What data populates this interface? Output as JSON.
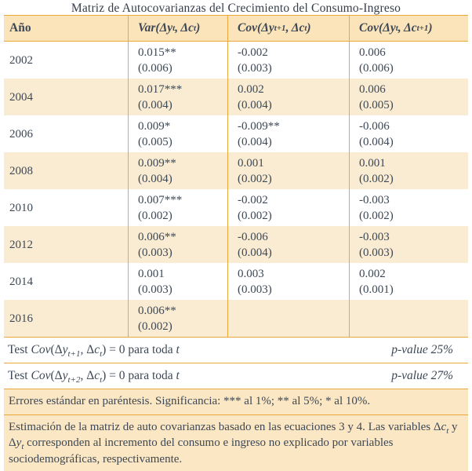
{
  "title": "Matriz de Autocovarianzas del Crecimiento del Consumo-Ingreso",
  "colors": {
    "header_bg": "#fce4ba",
    "stripe_bg": "#faecd2",
    "note_bg": "#fbe7c3",
    "border_gold": "#e9a73c",
    "text": "#3d4856"
  },
  "table": {
    "header": {
      "year_label": "Año",
      "col2_html": "Var(Δy<sub>t</sub>, Δc<sub>t</sub>)",
      "col3_html": "Cov(Δy<sub>t+1</sub>, Δc<sub>t</sub>)",
      "col4_html": "Cov(Δy<sub>t</sub>, Δc<sub>t+1</sub>)"
    },
    "rows": [
      {
        "year": "2002",
        "cells": [
          {
            "est": "0.015**",
            "se": "(0.006)"
          },
          {
            "est": "-0.002",
            "se": "(0.003)"
          },
          {
            "est": "0.006",
            "se": "(0.006)"
          }
        ]
      },
      {
        "year": "2004",
        "cells": [
          {
            "est": "0.017***",
            "se": "(0.004)"
          },
          {
            "est": "0.002",
            "se": "(0.004)"
          },
          {
            "est": "0.006",
            "se": "(0.005)"
          }
        ]
      },
      {
        "year": "2006",
        "cells": [
          {
            "est": "0.009*",
            "se": "(0.005)"
          },
          {
            "est": "-0.009**",
            "se": "(0.004)"
          },
          {
            "est": "-0.006",
            "se": "(0.004)"
          }
        ]
      },
      {
        "year": "2008",
        "cells": [
          {
            "est": "0.009**",
            "se": "(0.004)"
          },
          {
            "est": "0.001",
            "se": "(0.002)"
          },
          {
            "est": "0.001",
            "se": "(0.002)"
          }
        ]
      },
      {
        "year": "2010",
        "cells": [
          {
            "est": "0.007***",
            "se": "(0.002)"
          },
          {
            "est": "-0.002",
            "se": "(0.002)"
          },
          {
            "est": "-0.003",
            "se": "(0.002)"
          }
        ]
      },
      {
        "year": "2012",
        "cells": [
          {
            "est": "0.006**",
            "se": "(0.003)"
          },
          {
            "est": "-0.006",
            "se": "(0.004)"
          },
          {
            "est": "-0.003",
            "se": "(0.003)"
          }
        ]
      },
      {
        "year": "2014",
        "cells": [
          {
            "est": "0.001",
            "se": "(0.003)"
          },
          {
            "est": "0.003",
            "se": "(0.003)"
          },
          {
            "est": "0.002",
            "se": "(0.001)"
          }
        ]
      },
      {
        "year": "2016",
        "cells": [
          {
            "est": "0.006**",
            "se": "(0.002)"
          },
          {
            "est": "",
            "se": ""
          },
          {
            "est": "",
            "se": ""
          }
        ]
      }
    ]
  },
  "tests": [
    {
      "label_html": "Test <i>Cov</i>(Δ<i>y<sub>t+1</sub></i>, Δ<i>c<sub>t</sub></i>) = 0 para toda <i>t</i>",
      "pvalue_html": "<i>p-value</i> 25%"
    },
    {
      "label_html": "Test <i>Cov</i>(Δ<i>y<sub>t+2</sub></i>, Δ<i>c<sub>t</sub></i>) = 0 para toda <i>t</i>",
      "pvalue_html": "<i>p-value</i> 27%"
    }
  ],
  "notes": [
    {
      "html": "Errores estándar en paréntesis. Significancia: *** al 1%; ** al 5%; * al 10%."
    },
    {
      "html": "Estimación de la matriz de auto covarianzas basado en las ecuaciones 3 y 4. Las variables Δ<i>c<sub>t</sub></i> y Δ<i>y<sub>t</sub></i> corresponden al incremento del consumo e ingreso no explicado por variables sociodemográficas, respectivamente."
    }
  ]
}
